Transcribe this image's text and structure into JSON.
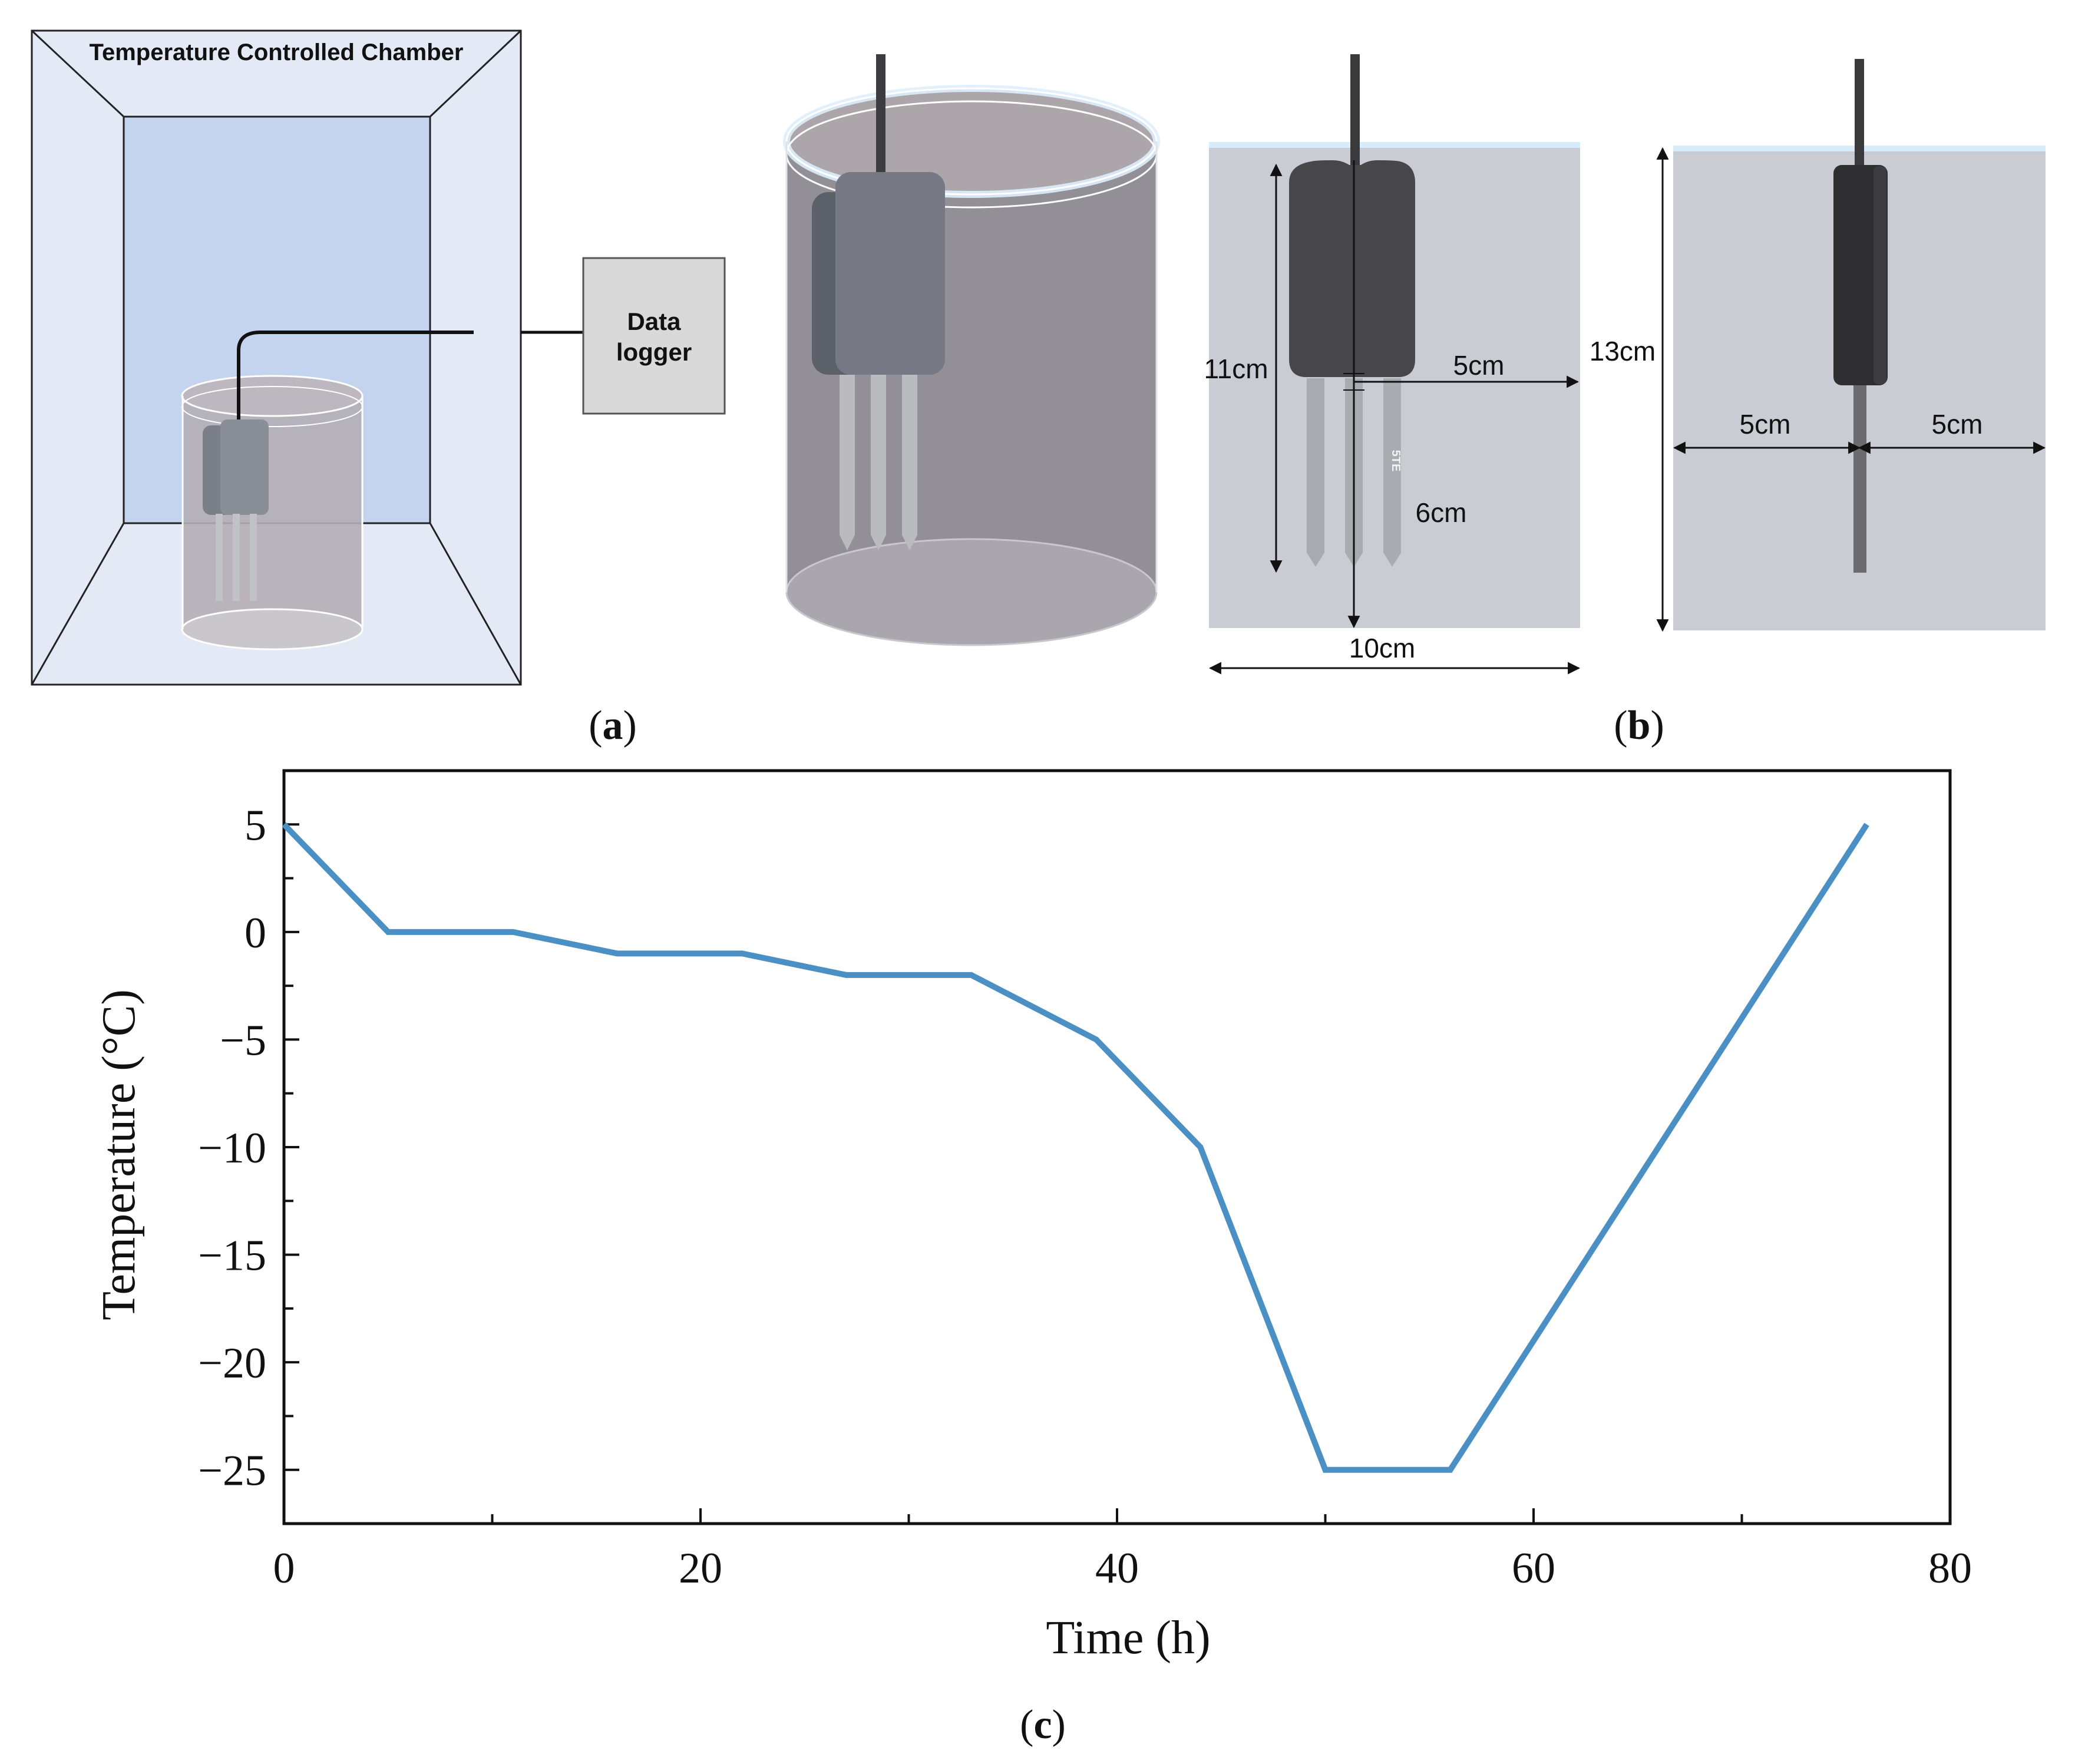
{
  "panel_a": {
    "chamber_label": "Temperature Controlled Chamber",
    "logger_line1": "Data",
    "logger_line2": "logger",
    "caption_letter": "a"
  },
  "panel_b": {
    "dim_sensor_height": "11cm",
    "dim_half_width_right": "5cm",
    "dim_prong_length": "6cm",
    "dim_width": "10cm",
    "dim_total_height": "13cm",
    "dim_left_half": "5cm",
    "dim_right_half": "5cm",
    "sensor_model": "5TE",
    "caption_letter": "b"
  },
  "panel_c": {
    "caption_letter": "c"
  },
  "colors": {
    "series": "#4a90c4",
    "chamber_wall": "#e3eaf6",
    "chamber_back": "#c4d4ee",
    "soil": "#b0acb2",
    "sensor": "#4a4a4c"
  },
  "chart_data": {
    "type": "line",
    "xlabel": "Time (h)",
    "ylabel": "Temperature (°C)",
    "xlim": [
      0,
      80
    ],
    "ylim": [
      -27.5,
      7.5
    ],
    "xticks": [
      0,
      20,
      40,
      60,
      80
    ],
    "xtick_labels": [
      "0",
      "20",
      "40",
      "60",
      "80"
    ],
    "yticks": [
      5,
      0,
      -5,
      -10,
      -15,
      -20,
      -25
    ],
    "ytick_labels": [
      "5",
      "0",
      "−5",
      "−10",
      "−15",
      "−20",
      "−25"
    ],
    "grid": false,
    "series": [
      {
        "x": [
          0,
          5,
          11,
          16,
          22,
          27,
          33,
          39,
          44,
          50,
          56,
          76
        ],
        "y": [
          5,
          0,
          0,
          -1,
          -1,
          -2,
          -2,
          -5,
          -10,
          -25,
          -25,
          5
        ]
      }
    ]
  }
}
